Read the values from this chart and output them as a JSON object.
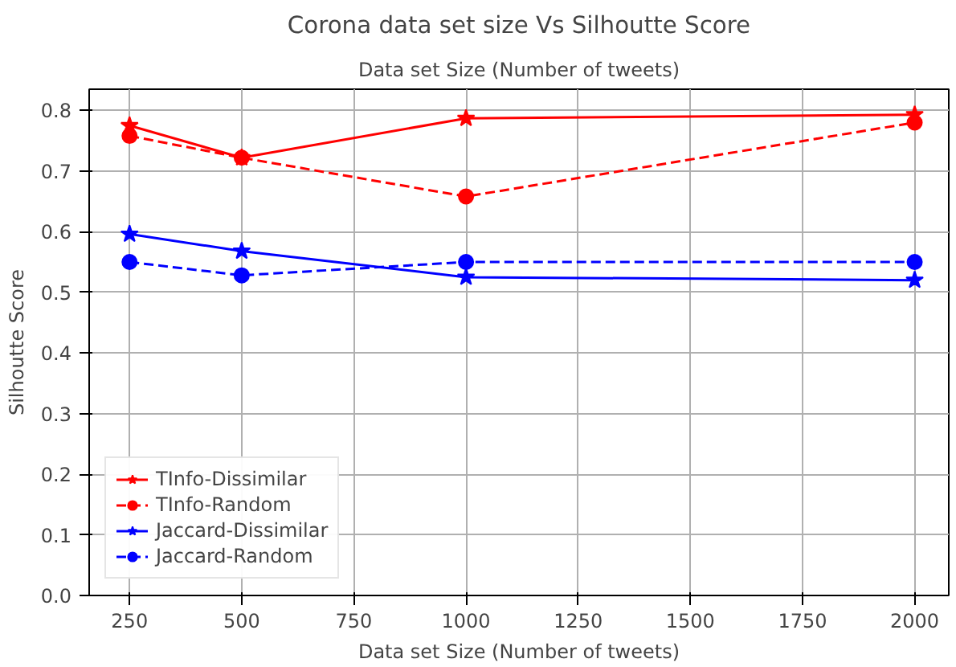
{
  "chart_data": {
    "type": "line",
    "title": "Corona data set size Vs Silhoutte Score",
    "annotations": [
      "Data set Size (Number of tweets)"
    ],
    "xlabel": "Data set Size (Number of tweets)",
    "ylabel": "Silhoutte Score",
    "x": [
      250,
      500,
      1000,
      2000
    ],
    "series": [
      {
        "name": "TInfo-Dissimilar",
        "color": "#ff0000",
        "values": [
          0.775,
          0.722,
          0.787,
          0.793
        ],
        "marker": "star",
        "line_style": "solid"
      },
      {
        "name": "TInfo-Random",
        "color": "#ff0000",
        "values": [
          0.758,
          0.722,
          0.658,
          0.78
        ],
        "marker": "circle",
        "line_style": "dashed"
      },
      {
        "name": "Jaccard-Dissimilar",
        "color": "#0000ff",
        "values": [
          0.596,
          0.568,
          0.525,
          0.52
        ],
        "marker": "star",
        "line_style": "solid"
      },
      {
        "name": "Jaccard-Random",
        "color": "#0000ff",
        "values": [
          0.55,
          0.528,
          0.55,
          0.55
        ],
        "marker": "circle",
        "line_style": "dashed"
      }
    ],
    "xlim": [
      160,
      2076
    ],
    "ylim": [
      0,
      0.835
    ],
    "xticks": [
      250,
      500,
      750,
      1000,
      1250,
      1500,
      1750,
      2000
    ],
    "yticks": [
      {
        "value": 0,
        "label": "0.0"
      },
      0.1,
      0.2,
      0.3,
      0.4,
      0.5,
      0.6,
      0.7,
      0.8
    ],
    "grid": true,
    "legend": "bottom left"
  }
}
